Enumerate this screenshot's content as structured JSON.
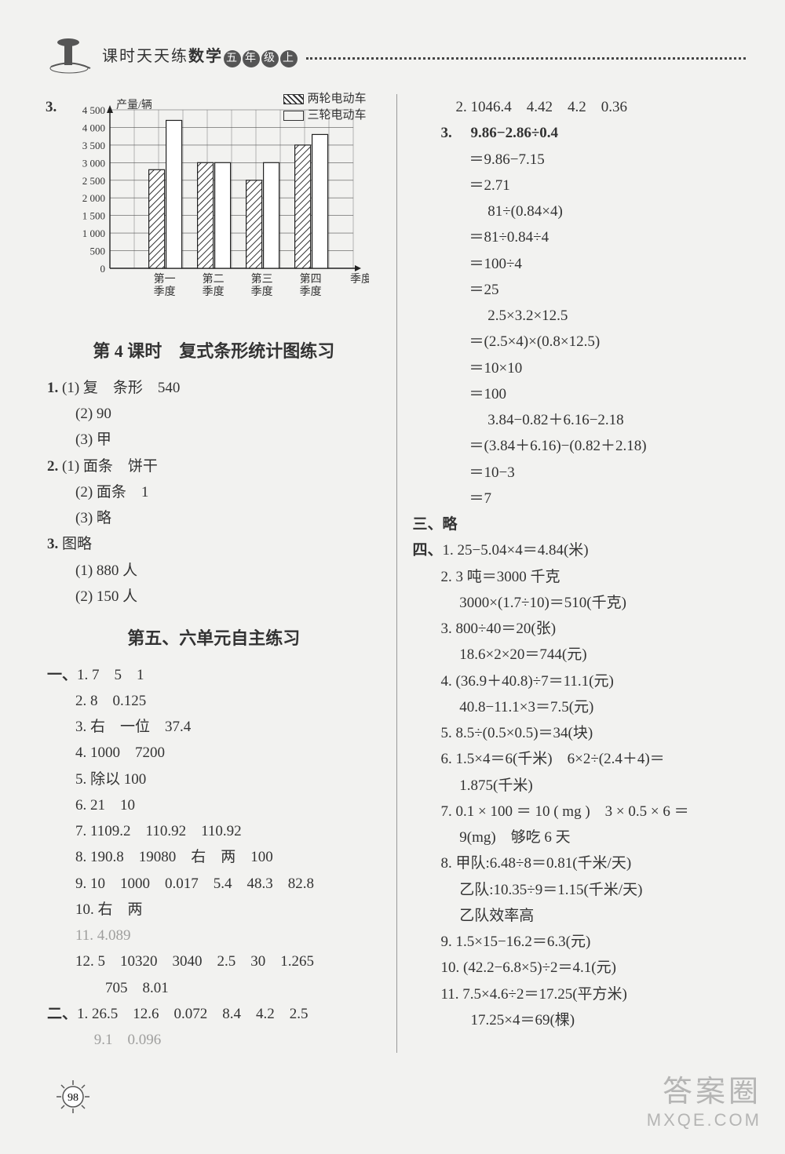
{
  "header": {
    "prefix": "课时天天练",
    "subject": "数学",
    "badges": [
      "五",
      "年",
      "级",
      "上"
    ]
  },
  "chart": {
    "qnum": "3.",
    "type": "bar",
    "ylabel": "产量/辆",
    "xlabel": "季度",
    "legend": [
      {
        "label": "两轮电动车",
        "hatched": true
      },
      {
        "label": "三轮电动车",
        "hatched": false
      }
    ],
    "categories": [
      "第一\n季度",
      "第二\n季度",
      "第三\n季度",
      "第四\n季度"
    ],
    "series": [
      {
        "name": "两轮电动车",
        "values": [
          2800,
          3000,
          2500,
          3500
        ],
        "hatched": true
      },
      {
        "name": "三轮电动车",
        "values": [
          4200,
          3000,
          3000,
          3800
        ],
        "hatched": false
      }
    ],
    "ylim": [
      0,
      4500
    ],
    "ytick_step": 500,
    "grid_color": "#555555",
    "bar_border": "#222222",
    "background": "#f2f2f0",
    "title_below": "第 4 课时　复式条形统计图练习"
  },
  "left": {
    "block1": {
      "q1": {
        "num": "1.",
        "l1": "(1) 复　条形　540",
        "l2": "(2) 90",
        "l3": "(3) 甲"
      },
      "q2": {
        "num": "2.",
        "l1": "(1) 面条　饼干",
        "l2": "(2) 面条　1",
        "l3": "(3) 略"
      },
      "q3": {
        "num": "3.",
        "head": "图略",
        "l1": "(1) 880 人",
        "l2": "(2) 150 人"
      }
    },
    "section2_title": "第五、六单元自主练习",
    "block2": {
      "yi": "一、",
      "i1": "1. 7　5　1",
      "i2": "2. 8　0.125",
      "i3": "3. 右　一位　37.4",
      "i4": "4. 1000　7200",
      "i5": "5. 除以 100",
      "i6": "6. 21　10",
      "i7": "7. 1109.2　110.92　110.92",
      "i8": "8. 190.8　19080　右　两　100",
      "i9": "9. 10　1000　0.017　5.4　48.3　82.8",
      "i10": "10. 右　两",
      "i11": "11. 4.089",
      "i12a": "12. 5　10320　3040　2.5　30　1.265",
      "i12b": "　　705　8.01",
      "er": "二、",
      "e1a": "1. 26.5　12.6　0.072　8.4　4.2　2.5",
      "e1b": "　 9.1　0.096"
    }
  },
  "right": {
    "r2": "2. 1046.4　4.42　4.2　0.36",
    "r3": "3. 　9.86−2.86÷0.4",
    "c1": "＝9.86−7.15",
    "c2": "＝2.71",
    "c3": "　 81÷(0.84×4)",
    "c4": "＝81÷0.84÷4",
    "c5": "＝100÷4",
    "c6": "＝25",
    "c7": "　 2.5×3.2×12.5",
    "c8": "＝(2.5×4)×(0.8×12.5)",
    "c9": "＝10×10",
    "c10": "＝100",
    "c11": "　 3.84−0.82＋6.16−2.18",
    "c12": "＝(3.84＋6.16)−(0.82＋2.18)",
    "c13": "＝10−3",
    "c14": "＝7",
    "san": "三、略",
    "si": "四、",
    "s1": "1. 25−5.04×4＝4.84(米)",
    "s2a": "2. 3 吨＝3000 千克",
    "s2b": "　 3000×(1.7÷10)＝510(千克)",
    "s3a": "3. 800÷40＝20(张)",
    "s3b": "　 18.6×2×20＝744(元)",
    "s4a": "4. (36.9＋40.8)÷7＝11.1(元)",
    "s4b": "　 40.8−11.1×3＝7.5(元)",
    "s5": "5. 8.5÷(0.5×0.5)＝34(块)",
    "s6a": "6. 1.5×4＝6(千米)　6×2÷(2.4＋4)＝",
    "s6b": "　 1.875(千米)",
    "s7a": "7. 0.1 × 100 ＝ 10 ( mg )　3 × 0.5 × 6 ＝",
    "s7b": "　 9(mg)　够吃 6 天",
    "s8a": "8. 甲队:6.48÷8＝0.81(千米/天)",
    "s8b": "　 乙队:10.35÷9＝1.15(千米/天)",
    "s8c": "　 乙队效率高",
    "s9": "9. 1.5×15−16.2＝6.3(元)",
    "s10": "10. (42.2−6.8×5)÷2＝4.1(元)",
    "s11a": "11. 7.5×4.6÷2＝17.25(平方米)",
    "s11b": "　　17.25×4＝69(棵)"
  },
  "page_number": "98",
  "watermark": {
    "line1": "答案圈",
    "line2": "MXQE.COM"
  }
}
